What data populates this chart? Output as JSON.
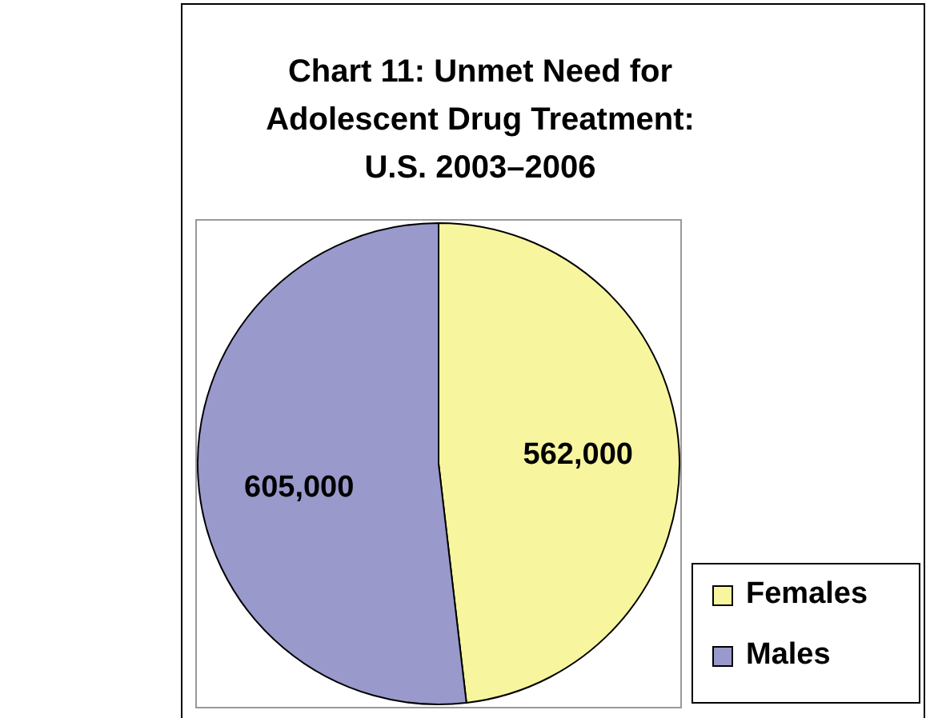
{
  "chart_data": {
    "type": "pie",
    "title": "Chart 11: Unmet Need for Adolescent Drug Treatment: U.S. 2003–2006",
    "categories": [
      "Females",
      "Males"
    ],
    "values": [
      562000,
      605000
    ],
    "colors": [
      "#f7f59e",
      "#9999cc"
    ],
    "value_labels": [
      "562,000",
      "605,000"
    ],
    "legend": "bottom right"
  }
}
